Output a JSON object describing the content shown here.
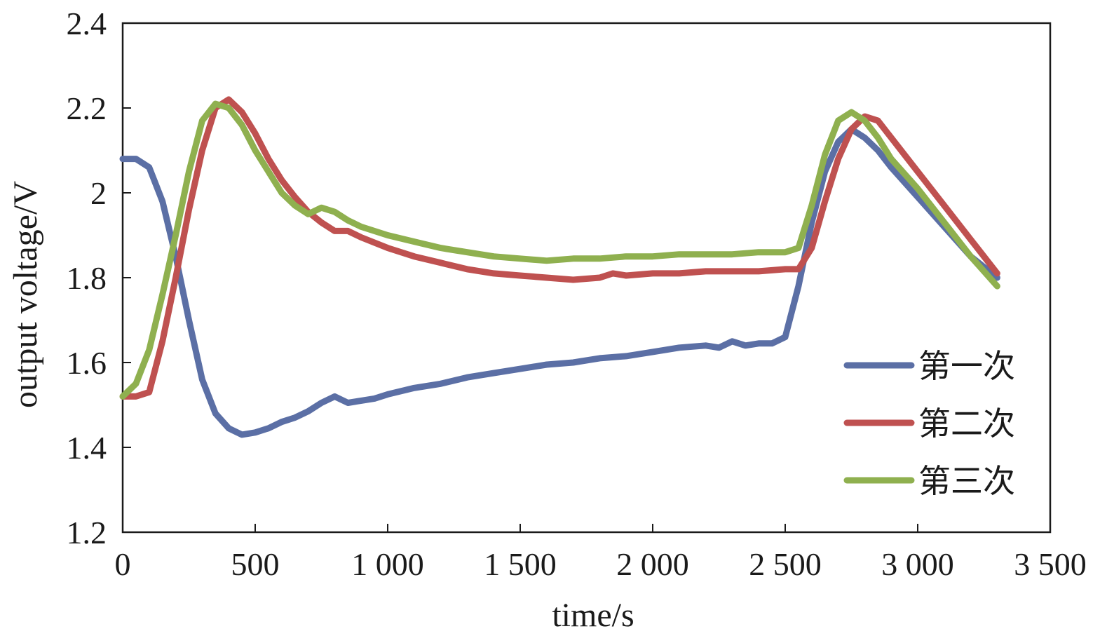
{
  "chart_data": {
    "type": "line",
    "xlabel": "time/s",
    "ylabel": "output voltage/V",
    "xlim": [
      0,
      3500
    ],
    "ylim": [
      1.2,
      2.4
    ],
    "x_ticks": [
      0,
      500,
      1000,
      1500,
      2000,
      2500,
      3000,
      3500
    ],
    "x_tick_labels": [
      "0",
      "500",
      "1 000",
      "1 500",
      "2 000",
      "2 500",
      "3 000",
      "3 500"
    ],
    "y_ticks": [
      1.2,
      1.4,
      1.6,
      1.8,
      2.0,
      2.2,
      2.4
    ],
    "y_tick_labels": [
      "1.2",
      "1.4",
      "1.6",
      "1.8",
      "2",
      "2.2",
      "2.4"
    ],
    "grid": false,
    "legend_position": "bottom-right",
    "series": [
      {
        "name": "第一次",
        "color": "#5b6fa5",
        "points": [
          [
            0,
            2.08
          ],
          [
            50,
            2.08
          ],
          [
            100,
            2.06
          ],
          [
            150,
            1.98
          ],
          [
            200,
            1.85
          ],
          [
            250,
            1.7
          ],
          [
            300,
            1.56
          ],
          [
            350,
            1.48
          ],
          [
            400,
            1.445
          ],
          [
            450,
            1.43
          ],
          [
            500,
            1.435
          ],
          [
            550,
            1.445
          ],
          [
            600,
            1.46
          ],
          [
            650,
            1.47
          ],
          [
            700,
            1.485
          ],
          [
            750,
            1.505
          ],
          [
            800,
            1.52
          ],
          [
            850,
            1.505
          ],
          [
            900,
            1.51
          ],
          [
            950,
            1.515
          ],
          [
            1000,
            1.525
          ],
          [
            1100,
            1.54
          ],
          [
            1200,
            1.55
          ],
          [
            1300,
            1.565
          ],
          [
            1400,
            1.575
          ],
          [
            1500,
            1.585
          ],
          [
            1600,
            1.595
          ],
          [
            1700,
            1.6
          ],
          [
            1800,
            1.61
          ],
          [
            1900,
            1.615
          ],
          [
            2000,
            1.625
          ],
          [
            2100,
            1.635
          ],
          [
            2200,
            1.64
          ],
          [
            2250,
            1.635
          ],
          [
            2300,
            1.65
          ],
          [
            2350,
            1.64
          ],
          [
            2400,
            1.645
          ],
          [
            2450,
            1.645
          ],
          [
            2500,
            1.66
          ],
          [
            2550,
            1.78
          ],
          [
            2600,
            1.93
          ],
          [
            2650,
            2.05
          ],
          [
            2700,
            2.12
          ],
          [
            2750,
            2.15
          ],
          [
            2800,
            2.13
          ],
          [
            2850,
            2.1
          ],
          [
            2900,
            2.06
          ],
          [
            3000,
            1.99
          ],
          [
            3100,
            1.92
          ],
          [
            3200,
            1.85
          ],
          [
            3300,
            1.8
          ]
        ]
      },
      {
        "name": "第二次",
        "color": "#bf5150",
        "points": [
          [
            0,
            1.52
          ],
          [
            50,
            1.52
          ],
          [
            100,
            1.53
          ],
          [
            150,
            1.65
          ],
          [
            200,
            1.8
          ],
          [
            250,
            1.96
          ],
          [
            300,
            2.1
          ],
          [
            350,
            2.2
          ],
          [
            400,
            2.22
          ],
          [
            450,
            2.19
          ],
          [
            500,
            2.14
          ],
          [
            550,
            2.08
          ],
          [
            600,
            2.03
          ],
          [
            650,
            1.99
          ],
          [
            700,
            1.955
          ],
          [
            750,
            1.93
          ],
          [
            800,
            1.91
          ],
          [
            850,
            1.91
          ],
          [
            900,
            1.895
          ],
          [
            1000,
            1.87
          ],
          [
            1100,
            1.85
          ],
          [
            1200,
            1.835
          ],
          [
            1300,
            1.82
          ],
          [
            1400,
            1.81
          ],
          [
            1500,
            1.805
          ],
          [
            1600,
            1.8
          ],
          [
            1700,
            1.795
          ],
          [
            1800,
            1.8
          ],
          [
            1850,
            1.81
          ],
          [
            1900,
            1.805
          ],
          [
            2000,
            1.81
          ],
          [
            2100,
            1.81
          ],
          [
            2200,
            1.815
          ],
          [
            2300,
            1.815
          ],
          [
            2400,
            1.815
          ],
          [
            2500,
            1.82
          ],
          [
            2550,
            1.82
          ],
          [
            2600,
            1.87
          ],
          [
            2650,
            1.98
          ],
          [
            2700,
            2.08
          ],
          [
            2750,
            2.15
          ],
          [
            2800,
            2.18
          ],
          [
            2850,
            2.17
          ],
          [
            2900,
            2.13
          ],
          [
            3000,
            2.05
          ],
          [
            3100,
            1.97
          ],
          [
            3200,
            1.89
          ],
          [
            3300,
            1.81
          ]
        ]
      },
      {
        "name": "第三次",
        "color": "#8fb04f",
        "points": [
          [
            0,
            1.52
          ],
          [
            50,
            1.55
          ],
          [
            100,
            1.63
          ],
          [
            150,
            1.76
          ],
          [
            200,
            1.9
          ],
          [
            250,
            2.05
          ],
          [
            300,
            2.17
          ],
          [
            350,
            2.21
          ],
          [
            400,
            2.2
          ],
          [
            450,
            2.16
          ],
          [
            500,
            2.1
          ],
          [
            550,
            2.05
          ],
          [
            600,
            2.0
          ],
          [
            650,
            1.97
          ],
          [
            700,
            1.95
          ],
          [
            750,
            1.965
          ],
          [
            800,
            1.955
          ],
          [
            850,
            1.935
          ],
          [
            900,
            1.92
          ],
          [
            1000,
            1.9
          ],
          [
            1100,
            1.885
          ],
          [
            1200,
            1.87
          ],
          [
            1300,
            1.86
          ],
          [
            1400,
            1.85
          ],
          [
            1500,
            1.845
          ],
          [
            1600,
            1.84
          ],
          [
            1700,
            1.845
          ],
          [
            1800,
            1.845
          ],
          [
            1900,
            1.85
          ],
          [
            2000,
            1.85
          ],
          [
            2100,
            1.855
          ],
          [
            2200,
            1.855
          ],
          [
            2300,
            1.855
          ],
          [
            2400,
            1.86
          ],
          [
            2500,
            1.86
          ],
          [
            2550,
            1.87
          ],
          [
            2600,
            1.97
          ],
          [
            2650,
            2.09
          ],
          [
            2700,
            2.17
          ],
          [
            2750,
            2.19
          ],
          [
            2800,
            2.17
          ],
          [
            2850,
            2.13
          ],
          [
            2900,
            2.08
          ],
          [
            3000,
            2.01
          ],
          [
            3100,
            1.93
          ],
          [
            3200,
            1.85
          ],
          [
            3300,
            1.78
          ]
        ]
      }
    ]
  }
}
